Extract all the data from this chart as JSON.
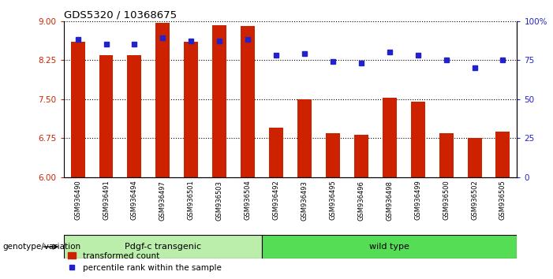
{
  "title": "GDS5320 / 10368675",
  "categories": [
    "GSM936490",
    "GSM936491",
    "GSM936494",
    "GSM936497",
    "GSM936501",
    "GSM936503",
    "GSM936504",
    "GSM936492",
    "GSM936493",
    "GSM936495",
    "GSM936496",
    "GSM936498",
    "GSM936499",
    "GSM936500",
    "GSM936502",
    "GSM936505"
  ],
  "bar_values": [
    8.6,
    8.35,
    8.35,
    8.97,
    8.6,
    8.92,
    8.9,
    6.95,
    7.5,
    6.85,
    6.82,
    7.52,
    7.45,
    6.84,
    6.75,
    6.88
  ],
  "dot_values": [
    88,
    85,
    85,
    89,
    87,
    87,
    88,
    78,
    79,
    74,
    73,
    80,
    78,
    75,
    70,
    75
  ],
  "bar_color": "#cc2200",
  "dot_color": "#2222cc",
  "ylim_left": [
    6,
    9
  ],
  "ylim_right": [
    0,
    100
  ],
  "yticks_left": [
    6,
    6.75,
    7.5,
    8.25,
    9
  ],
  "yticks_right": [
    0,
    25,
    50,
    75,
    100
  ],
  "group1_label": "Pdgf-c transgenic",
  "group2_label": "wild type",
  "group1_count": 7,
  "group_label": "genotype/variation",
  "legend_bar": "transformed count",
  "legend_dot": "percentile rank within the sample",
  "bg_color": "#ffffff",
  "tick_label_color_left": "#cc2200",
  "tick_label_color_right": "#2222cc",
  "group1_color": "#bbeeaa",
  "group2_color": "#55dd55",
  "xticklabel_bg": "#c8c8c8"
}
